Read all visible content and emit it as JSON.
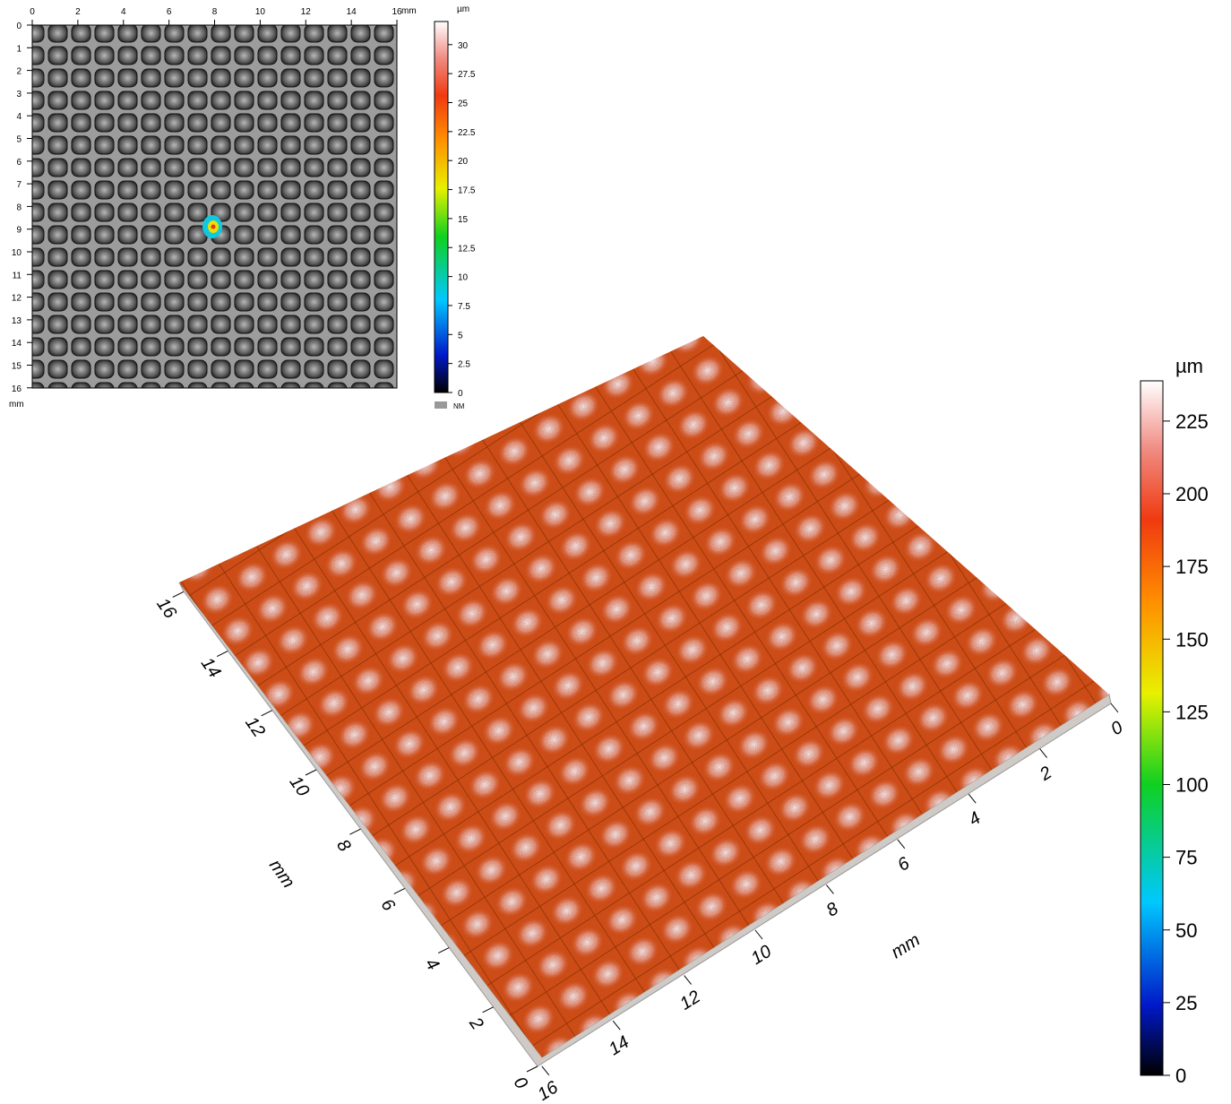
{
  "map_2d": {
    "x_ticks": [
      0,
      2,
      4,
      6,
      8,
      10,
      12,
      14,
      16
    ],
    "x_unit": "mm",
    "y_ticks": [
      0,
      1,
      2,
      3,
      4,
      5,
      6,
      7,
      8,
      9,
      10,
      11,
      12,
      13,
      14,
      15,
      16
    ],
    "y_unit": "mm",
    "colorbar": {
      "unit": "µm",
      "ticks": [
        0,
        2.5,
        5,
        7.5,
        10,
        12.5,
        15,
        17.5,
        20,
        22.5,
        25,
        27.5,
        30
      ],
      "no_data_label": "NM"
    }
  },
  "view_3d": {
    "axis_left": {
      "ticks": [
        0,
        2,
        4,
        6,
        8,
        10,
        12,
        14,
        16
      ],
      "unit": "mm"
    },
    "axis_right": {
      "ticks": [
        0,
        2,
        4,
        6,
        8,
        10,
        12,
        14,
        16
      ],
      "unit": "mm"
    },
    "colorbar": {
      "unit": "µm",
      "ticks": [
        0,
        25,
        50,
        75,
        100,
        125,
        150,
        175,
        200,
        225
      ]
    }
  }
}
